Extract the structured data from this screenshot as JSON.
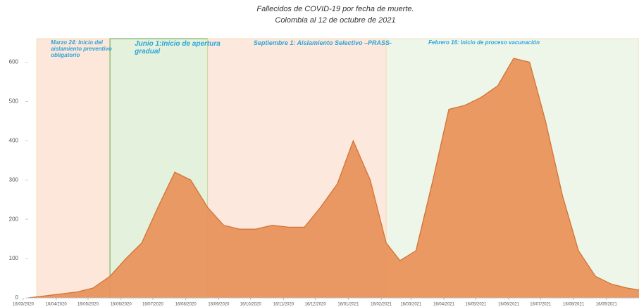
{
  "chart_data": {
    "type": "area",
    "title": "Fallecidos de COVID-19 por fecha de muerte.",
    "subtitle": "Colombia al 12 de octubre de 2021",
    "color": "#e9945c",
    "line_color": "#d27335",
    "x": [
      "16/03/2020",
      "01/04/2020",
      "16/04/2020",
      "01/05/2020",
      "16/05/2020",
      "01/06/2020",
      "16/06/2020",
      "01/07/2020",
      "16/07/2020",
      "01/08/2020",
      "16/08/2020",
      "01/09/2020",
      "16/09/2020",
      "01/10/2020",
      "16/10/2020",
      "01/11/2020",
      "16/11/2020",
      "01/12/2020",
      "16/12/2020",
      "01/01/2021",
      "16/01/2021",
      "01/02/2021",
      "16/02/2021",
      "01/03/2021",
      "16/03/2021",
      "01/04/2021",
      "16/04/2021",
      "01/05/2021",
      "16/05/2021",
      "01/06/2021",
      "16/06/2021",
      "01/07/2021",
      "16/07/2021",
      "01/08/2021",
      "16/08/2021",
      "01/09/2021",
      "16/09/2021",
      "01/10/2021",
      "12/10/2021"
    ],
    "values": [
      0,
      5,
      10,
      15,
      25,
      55,
      100,
      140,
      230,
      320,
      300,
      230,
      185,
      175,
      175,
      185,
      180,
      180,
      230,
      290,
      400,
      300,
      140,
      95,
      120,
      300,
      480,
      490,
      510,
      540,
      610,
      600,
      450,
      260,
      120,
      55,
      35,
      25,
      20
    ],
    "xlim": [
      "16/03/2020",
      "12/10/2021"
    ],
    "xticks": [
      "16/03/2020",
      "16/04/2020",
      "16/05/2020",
      "16/06/2020",
      "16/07/2020",
      "16/08/2020",
      "16/09/2020",
      "16/10/2020",
      "16/11/2020",
      "16/12/2020",
      "16/01/2021",
      "16/02/2021",
      "16/03/2021",
      "16/04/2021",
      "16/05/2021",
      "16/06/2021",
      "16/07/2021",
      "16/08/2021",
      "16/09/2021"
    ],
    "ylim": [
      0,
      660
    ],
    "yticks": [
      0,
      100,
      200,
      300,
      400,
      500,
      600
    ],
    "phases": [
      {
        "start": "24/03/2020",
        "end": "01/06/2020",
        "label": "Marzo 24: Inicio del aislamiento preventivo obligatorio",
        "color": "#fde6da"
      },
      {
        "start": "01/06/2020",
        "end": "01/09/2020",
        "label": "Junio 1:Inicio de apertura gradual",
        "color": "#e4f1dc"
      },
      {
        "start": "01/09/2020",
        "end": "16/02/2021",
        "label": "Septiembre 1: Aislamiento Selectivo –PRASS-",
        "color": "#fde8dd"
      },
      {
        "start": "16/02/2021",
        "end": "12/10/2021",
        "label": "Febrero 16: Inicio de proceso vacunación",
        "color": "#eef6ea"
      }
    ]
  }
}
